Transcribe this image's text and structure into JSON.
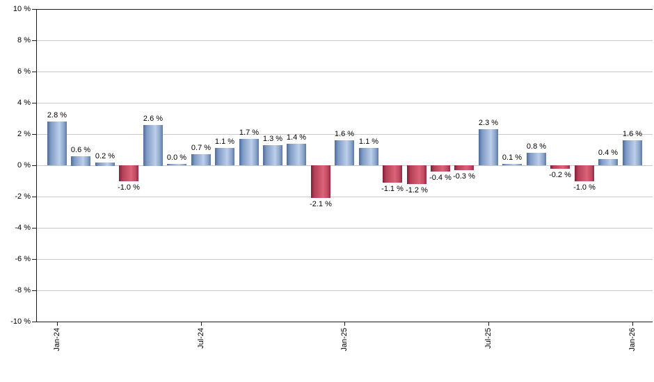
{
  "chart_data": {
    "type": "bar",
    "title": "",
    "xlabel": "",
    "ylabel": "",
    "ylim": [
      -10,
      10
    ],
    "grid": true,
    "legend_position": "none",
    "values": [
      2.8,
      0.6,
      0.2,
      -1.0,
      2.6,
      0.0,
      0.7,
      1.1,
      1.7,
      1.3,
      1.4,
      -2.1,
      1.6,
      1.1,
      -1.1,
      -1.2,
      -0.4,
      -0.3,
      2.3,
      0.1,
      0.8,
      -0.2,
      -1.0,
      0.4,
      1.6
    ],
    "bar_labels": [
      "2.8 %",
      "0.6 %",
      "0.2 %",
      "-1.0 %",
      "2.6 %",
      "0.0 %",
      "0.7 %",
      "1.1 %",
      "1.7 %",
      "1.3 %",
      "1.4 %",
      "-2.1 %",
      "1.6 %",
      "1.1 %",
      "-1.1 %",
      "-1.2 %",
      "-0.4 %",
      "-0.3 %",
      "2.3 %",
      "0.1 %",
      "0.8 %",
      "-0.2 %",
      "-1.0 %",
      "0.4 %",
      "1.6 %"
    ],
    "x_tick_labels": [
      {
        "index": 0,
        "label": "Jan-24"
      },
      {
        "index": 6,
        "label": "Jul-24"
      },
      {
        "index": 12,
        "label": "Jan-25"
      },
      {
        "index": 18,
        "label": "Jul-25"
      },
      {
        "index": 24,
        "label": "Jan-26"
      }
    ],
    "y_ticks": [
      {
        "value": 10,
        "label": "10 %"
      },
      {
        "value": 8,
        "label": "8 %"
      },
      {
        "value": 6,
        "label": "6 %"
      },
      {
        "value": 4,
        "label": "4 %"
      },
      {
        "value": 2,
        "label": "2 %"
      },
      {
        "value": 0,
        "label": "0 %"
      },
      {
        "value": -2,
        "label": "-2 %"
      },
      {
        "value": -4,
        "label": "-4 %"
      },
      {
        "value": -6,
        "label": "-6 %"
      },
      {
        "value": -8,
        "label": "-8 %"
      },
      {
        "value": -10,
        "label": "-10 %"
      }
    ],
    "colors": {
      "positive_bar_gradient": [
        "#4d6c9b",
        "#7f9ac4",
        "#bccfeb",
        "#8ca5ca",
        "#5d7aa8"
      ],
      "negative_bar_gradient": [
        "#7e1f39",
        "#b34158",
        "#dc6277",
        "#c14b62",
        "#8f2a45"
      ],
      "gridline": "#c9c9c9",
      "axis": "#1a1a1a",
      "label_text": "#000000",
      "background": "#ffffff"
    }
  }
}
